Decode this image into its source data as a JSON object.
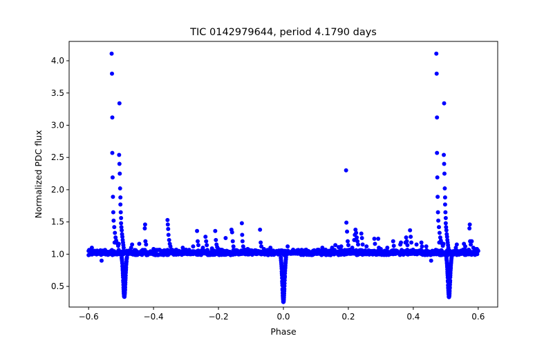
{
  "chart_data": {
    "type": "scatter",
    "title": "TIC 0142979644, period 4.1790 days",
    "xlabel": "Phase",
    "ylabel": "Normalized PDC flux",
    "xlim": [
      -0.66,
      0.66
    ],
    "ylim": [
      0.18,
      4.3
    ],
    "x_ticks": [
      -0.6,
      -0.4,
      -0.2,
      0.0,
      0.2,
      0.4,
      0.6
    ],
    "x_tick_labels": [
      "−0.6",
      "−0.4",
      "−0.2",
      "0.0",
      "0.2",
      "0.4",
      "0.6"
    ],
    "y_ticks": [
      0.5,
      1.0,
      1.5,
      2.0,
      2.5,
      3.0,
      3.5,
      4.0
    ],
    "y_tick_labels": [
      "0.5",
      "1.0",
      "1.5",
      "2.0",
      "2.5",
      "3.0",
      "3.5",
      "4.0"
    ],
    "grid": false,
    "marker_color": "#0000ff",
    "baseline_flux": 1.0,
    "phase_range": [
      -0.6,
      0.6
    ],
    "dips": [
      {
        "center": -0.49,
        "min_flux": 0.34,
        "half_width": 0.008
      },
      {
        "center": 0.0,
        "min_flux": 0.26,
        "half_width": 0.008
      },
      {
        "center": 0.51,
        "min_flux": 0.34,
        "half_width": 0.008
      }
    ],
    "flare_points": [
      {
        "x": -0.529,
        "y": 4.11
      },
      {
        "x": -0.528,
        "y": 3.8
      },
      {
        "x": -0.527,
        "y": 3.12
      },
      {
        "x": -0.527,
        "y": 2.57
      },
      {
        "x": -0.526,
        "y": 2.19
      },
      {
        "x": -0.525,
        "y": 1.89
      },
      {
        "x": -0.524,
        "y": 1.65
      },
      {
        "x": -0.523,
        "y": 1.52
      },
      {
        "x": -0.521,
        "y": 1.42
      },
      {
        "x": -0.519,
        "y": 1.33
      },
      {
        "x": -0.517,
        "y": 1.26
      },
      {
        "x": -0.515,
        "y": 1.21
      },
      {
        "x": -0.512,
        "y": 1.17
      },
      {
        "x": -0.509,
        "y": 1.13
      },
      {
        "x": -0.52,
        "y": 1.18
      },
      {
        "x": -0.507,
        "y": 1.16
      },
      {
        "x": -0.505,
        "y": 3.34
      },
      {
        "x": -0.506,
        "y": 2.54
      },
      {
        "x": -0.505,
        "y": 2.4
      },
      {
        "x": -0.504,
        "y": 2.25
      },
      {
        "x": -0.503,
        "y": 2.02
      },
      {
        "x": -0.502,
        "y": 1.88
      },
      {
        "x": -0.502,
        "y": 1.77
      },
      {
        "x": -0.501,
        "y": 1.65
      },
      {
        "x": -0.5,
        "y": 1.56
      },
      {
        "x": -0.5,
        "y": 1.48
      },
      {
        "x": -0.499,
        "y": 1.42
      },
      {
        "x": -0.498,
        "y": 1.37
      },
      {
        "x": -0.497,
        "y": 1.31
      },
      {
        "x": -0.496,
        "y": 1.27
      },
      {
        "x": -0.495,
        "y": 1.22
      },
      {
        "x": -0.494,
        "y": 1.18
      },
      {
        "x": -0.493,
        "y": 1.14
      },
      {
        "x": -0.492,
        "y": 1.1
      },
      {
        "x": -0.471,
        "y": 1.05
      },
      {
        "x": -0.469,
        "y": 1.1
      },
      {
        "x": -0.466,
        "y": 1.15
      },
      {
        "x": -0.444,
        "y": 1.16
      },
      {
        "x": -0.426,
        "y": 1.46
      },
      {
        "x": -0.427,
        "y": 1.4
      },
      {
        "x": -0.425,
        "y": 1.2
      },
      {
        "x": -0.423,
        "y": 1.15
      },
      {
        "x": -0.4,
        "y": 1.08
      },
      {
        "x": -0.357,
        "y": 1.53
      },
      {
        "x": -0.356,
        "y": 1.46
      },
      {
        "x": -0.355,
        "y": 1.39
      },
      {
        "x": -0.354,
        "y": 1.3
      },
      {
        "x": -0.352,
        "y": 1.22
      },
      {
        "x": -0.35,
        "y": 1.16
      },
      {
        "x": -0.348,
        "y": 1.12
      },
      {
        "x": -0.33,
        "y": 1.07
      },
      {
        "x": -0.31,
        "y": 1.1
      },
      {
        "x": -0.3,
        "y": 1.07
      },
      {
        "x": -0.278,
        "y": 1.12
      },
      {
        "x": -0.266,
        "y": 1.36
      },
      {
        "x": -0.264,
        "y": 1.2
      },
      {
        "x": -0.262,
        "y": 1.14
      },
      {
        "x": -0.248,
        "y": 1.1
      },
      {
        "x": -0.24,
        "y": 1.27
      },
      {
        "x": -0.238,
        "y": 1.2
      },
      {
        "x": -0.236,
        "y": 1.14
      },
      {
        "x": -0.22,
        "y": 1.09
      },
      {
        "x": -0.21,
        "y": 1.36
      },
      {
        "x": -0.208,
        "y": 1.22
      },
      {
        "x": -0.206,
        "y": 1.15
      },
      {
        "x": -0.204,
        "y": 1.11
      },
      {
        "x": -0.2,
        "y": 1.08
      },
      {
        "x": -0.178,
        "y": 1.25
      },
      {
        "x": -0.16,
        "y": 1.38
      },
      {
        "x": -0.158,
        "y": 1.34
      },
      {
        "x": -0.156,
        "y": 1.2
      },
      {
        "x": -0.154,
        "y": 1.12
      },
      {
        "x": -0.128,
        "y": 1.48
      },
      {
        "x": -0.127,
        "y": 1.3
      },
      {
        "x": -0.126,
        "y": 1.2
      },
      {
        "x": -0.124,
        "y": 1.12
      },
      {
        "x": -0.11,
        "y": 1.08
      },
      {
        "x": -0.072,
        "y": 1.38
      },
      {
        "x": -0.07,
        "y": 1.18
      },
      {
        "x": -0.068,
        "y": 1.12
      },
      {
        "x": -0.06,
        "y": 1.08
      },
      {
        "x": -0.04,
        "y": 1.1
      },
      {
        "x": 0.013,
        "y": 1.12
      },
      {
        "x": 0.03,
        "y": 1.07
      },
      {
        "x": 0.07,
        "y": 1.07
      },
      {
        "x": 0.12,
        "y": 1.1
      },
      {
        "x": 0.13,
        "y": 1.07
      },
      {
        "x": 0.15,
        "y": 1.1
      },
      {
        "x": 0.16,
        "y": 1.14
      },
      {
        "x": 0.17,
        "y": 1.11
      },
      {
        "x": 0.178,
        "y": 1.12
      },
      {
        "x": 0.193,
        "y": 2.3
      },
      {
        "x": 0.194,
        "y": 1.49
      },
      {
        "x": 0.196,
        "y": 1.35
      },
      {
        "x": 0.198,
        "y": 1.2
      },
      {
        "x": 0.2,
        "y": 1.14
      },
      {
        "x": 0.212,
        "y": 1.1
      },
      {
        "x": 0.218,
        "y": 1.22
      },
      {
        "x": 0.22,
        "y": 1.3
      },
      {
        "x": 0.222,
        "y": 1.38
      },
      {
        "x": 0.224,
        "y": 1.33
      },
      {
        "x": 0.226,
        "y": 1.26
      },
      {
        "x": 0.228,
        "y": 1.2
      },
      {
        "x": 0.23,
        "y": 1.15
      },
      {
        "x": 0.24,
        "y": 1.32
      },
      {
        "x": 0.242,
        "y": 1.25
      },
      {
        "x": 0.244,
        "y": 1.15
      },
      {
        "x": 0.256,
        "y": 1.12
      },
      {
        "x": 0.28,
        "y": 1.24
      },
      {
        "x": 0.282,
        "y": 1.16
      },
      {
        "x": 0.292,
        "y": 1.24
      },
      {
        "x": 0.294,
        "y": 1.1
      },
      {
        "x": 0.3,
        "y": 1.08
      },
      {
        "x": 0.32,
        "y": 1.1
      },
      {
        "x": 0.338,
        "y": 1.2
      },
      {
        "x": 0.34,
        "y": 1.13
      },
      {
        "x": 0.36,
        "y": 1.15
      },
      {
        "x": 0.362,
        "y": 1.18
      },
      {
        "x": 0.376,
        "y": 1.18
      },
      {
        "x": 0.378,
        "y": 1.26
      },
      {
        "x": 0.38,
        "y": 1.2
      },
      {
        "x": 0.382,
        "y": 1.14
      },
      {
        "x": 0.39,
        "y": 1.37
      },
      {
        "x": 0.392,
        "y": 1.27
      },
      {
        "x": 0.394,
        "y": 1.18
      },
      {
        "x": 0.41,
        "y": 1.15
      },
      {
        "x": 0.425,
        "y": 1.18
      },
      {
        "x": 0.427,
        "y": 1.12
      },
      {
        "x": 0.44,
        "y": 1.12
      },
      {
        "x": 0.471,
        "y": 4.11
      },
      {
        "x": 0.472,
        "y": 3.8
      },
      {
        "x": 0.473,
        "y": 3.12
      },
      {
        "x": 0.473,
        "y": 2.57
      },
      {
        "x": 0.474,
        "y": 2.19
      },
      {
        "x": 0.475,
        "y": 1.89
      },
      {
        "x": 0.476,
        "y": 1.65
      },
      {
        "x": 0.477,
        "y": 1.52
      },
      {
        "x": 0.479,
        "y": 1.42
      },
      {
        "x": 0.481,
        "y": 1.33
      },
      {
        "x": 0.483,
        "y": 1.26
      },
      {
        "x": 0.485,
        "y": 1.21
      },
      {
        "x": 0.488,
        "y": 1.17
      },
      {
        "x": 0.491,
        "y": 1.13
      },
      {
        "x": 0.48,
        "y": 1.18
      },
      {
        "x": 0.493,
        "y": 1.16
      },
      {
        "x": 0.495,
        "y": 3.34
      },
      {
        "x": 0.494,
        "y": 2.54
      },
      {
        "x": 0.495,
        "y": 2.4
      },
      {
        "x": 0.496,
        "y": 2.25
      },
      {
        "x": 0.497,
        "y": 2.02
      },
      {
        "x": 0.498,
        "y": 1.88
      },
      {
        "x": 0.498,
        "y": 1.77
      },
      {
        "x": 0.499,
        "y": 1.65
      },
      {
        "x": 0.5,
        "y": 1.56
      },
      {
        "x": 0.5,
        "y": 1.48
      },
      {
        "x": 0.501,
        "y": 1.42
      },
      {
        "x": 0.502,
        "y": 1.37
      },
      {
        "x": 0.503,
        "y": 1.31
      },
      {
        "x": 0.504,
        "y": 1.27
      },
      {
        "x": 0.505,
        "y": 1.22
      },
      {
        "x": 0.506,
        "y": 1.18
      },
      {
        "x": 0.507,
        "y": 1.14
      },
      {
        "x": 0.508,
        "y": 1.1
      },
      {
        "x": 0.529,
        "y": 1.05
      },
      {
        "x": 0.531,
        "y": 1.1
      },
      {
        "x": 0.534,
        "y": 1.15
      },
      {
        "x": 0.556,
        "y": 1.16
      },
      {
        "x": 0.56,
        "y": 1.12
      },
      {
        "x": 0.574,
        "y": 1.46
      },
      {
        "x": 0.573,
        "y": 1.4
      },
      {
        "x": 0.575,
        "y": 1.2
      },
      {
        "x": 0.577,
        "y": 1.15
      },
      {
        "x": 0.58,
        "y": 1.2
      },
      {
        "x": 0.585,
        "y": 1.1
      },
      {
        "x": 0.59,
        "y": 1.08
      },
      {
        "x": -0.56,
        "y": 0.9
      },
      {
        "x": 0.455,
        "y": 0.9
      },
      {
        "x": -0.6,
        "y": 1.05
      },
      {
        "x": 0.6,
        "y": 1.05
      },
      {
        "x": -0.59,
        "y": 1.1
      },
      {
        "x": 0.596,
        "y": 1.08
      }
    ]
  }
}
